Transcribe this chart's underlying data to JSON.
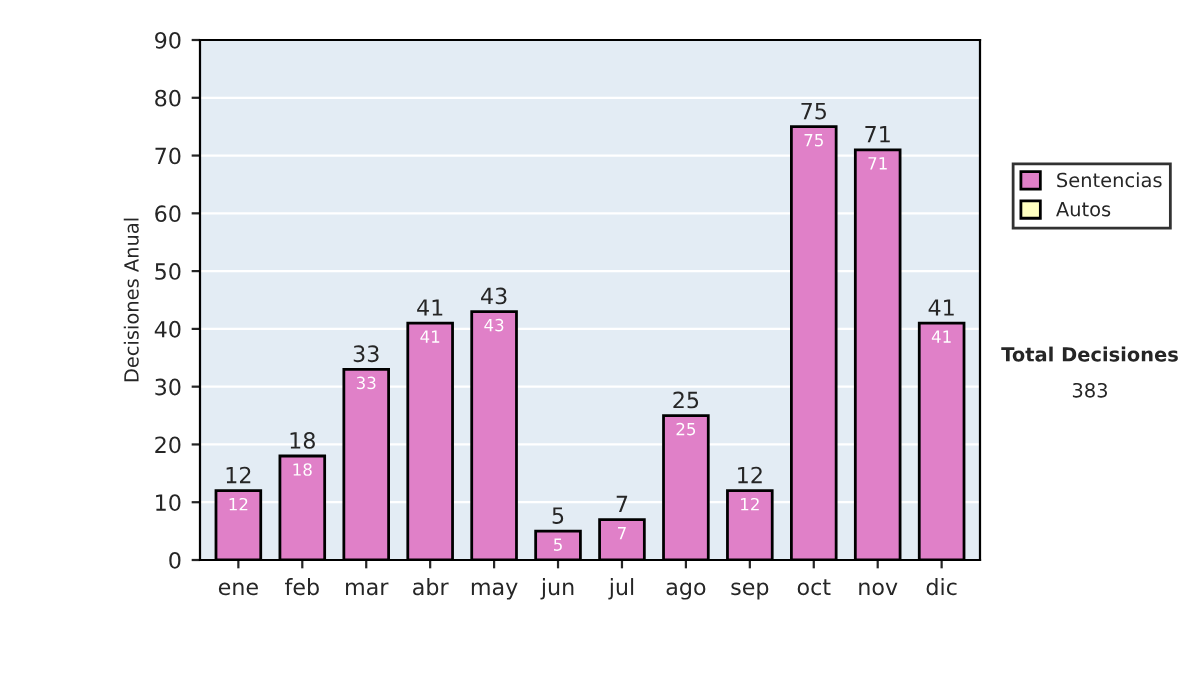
{
  "chart_data": {
    "type": "bar",
    "stacked": true,
    "ylabel": "Decisiones Anual",
    "categories": [
      "ene",
      "feb",
      "mar",
      "abr",
      "may",
      "jun",
      "jul",
      "ago",
      "sep",
      "oct",
      "nov",
      "dic"
    ],
    "series": [
      {
        "name": "Sentencias",
        "color": "#e080c8",
        "values": [
          12,
          18,
          33,
          41,
          43,
          5,
          7,
          25,
          12,
          75,
          71,
          41
        ],
        "value_labels": [
          "12",
          "18",
          "33",
          "41",
          "43",
          "5",
          "7",
          "25",
          "12",
          "75",
          "71",
          "41"
        ]
      },
      {
        "name": "Autos",
        "color": "#ffffc0",
        "values": [
          null,
          null,
          null,
          null,
          null,
          null,
          null,
          null,
          null,
          null,
          null,
          null
        ]
      }
    ],
    "totals": [
      "12",
      "18",
      "33",
      "41",
      "43",
      "5",
      "7",
      "25",
      "12",
      "75",
      "71",
      "41"
    ],
    "ylim": [
      0,
      90
    ],
    "yticks": [
      0,
      10,
      20,
      30,
      40,
      50,
      60,
      70,
      80,
      90
    ],
    "grid": "y",
    "legend": "right",
    "annotations": [
      "Total Decisiones",
      "383"
    ]
  }
}
